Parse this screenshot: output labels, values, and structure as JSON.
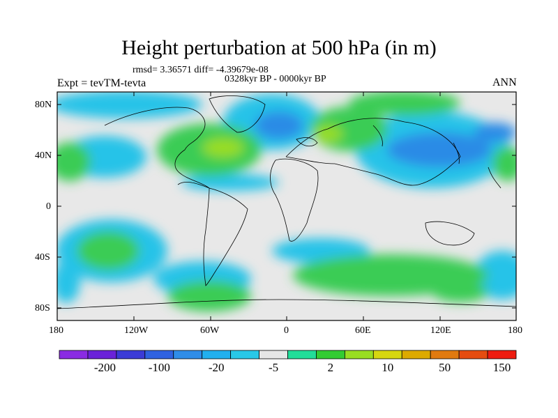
{
  "header": {
    "title": "Height perturbation at 500 hPa (in m)",
    "stats": "rmsd= 3.36571 diff= -4.39679e-08",
    "period": "0328kyr BP - 0000kyr BP",
    "experiment": "Expt = tevTM-tevta",
    "season": "ANN"
  },
  "axes": {
    "lat_labels": [
      "80N",
      "40N",
      "0",
      "40S",
      "80S"
    ],
    "lon_labels": [
      "180",
      "120W",
      "60W",
      "0",
      "60E",
      "120E",
      "180"
    ]
  },
  "colorbar": {
    "colors": [
      "#8a2be2",
      "#6a22d8",
      "#3b3bd6",
      "#2f62e0",
      "#2f8de8",
      "#22b0ee",
      "#29c8e8",
      "#e6e6e6",
      "#22dd99",
      "#33cc33",
      "#99dd22",
      "#d6d610",
      "#ddaa00",
      "#e07a10",
      "#e54c10",
      "#ee1c10"
    ],
    "labels": [
      "-200",
      "-100",
      "-20",
      "-5",
      "2",
      "10",
      "50",
      "150"
    ]
  },
  "map": {
    "background": "#e8e8e8",
    "features": [
      {
        "name": "positive anomaly",
        "color": "#33cc55",
        "cx": -50,
        "cy": 45
      },
      {
        "name": "positive anomaly",
        "color": "#33cc55",
        "cx": 35,
        "cy": 52
      },
      {
        "name": "negative anomaly",
        "color": "#2a7fe8",
        "cx": 125,
        "cy": 40
      },
      {
        "name": "positive anomaly",
        "color": "#44cc55",
        "cx": -155,
        "cy": -30
      },
      {
        "name": "positive anomaly",
        "color": "#44cc55",
        "cx": 75,
        "cy": -45
      }
    ]
  }
}
